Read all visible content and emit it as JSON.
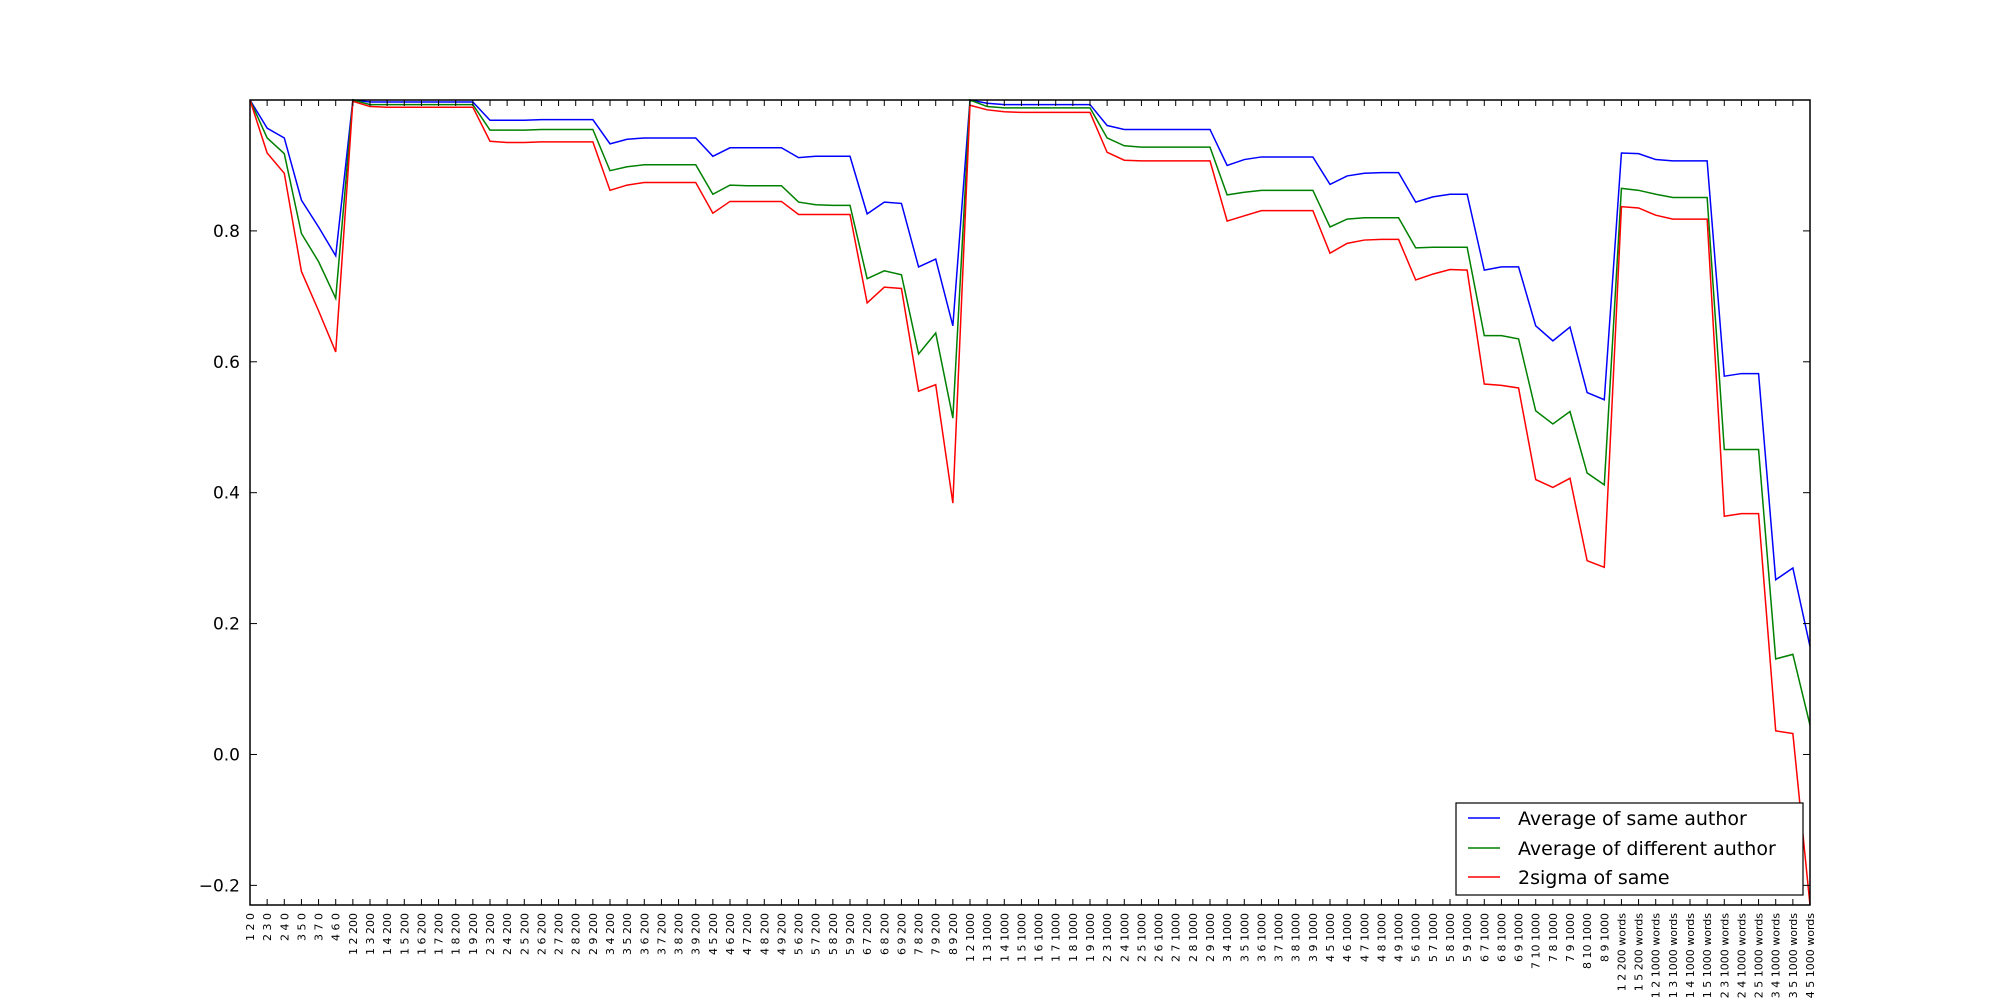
{
  "chart_data": {
    "type": "line",
    "title": "",
    "xlabel": "",
    "ylabel": "",
    "ylim": [
      -0.23,
      1.0
    ],
    "yticks": [
      -0.2,
      0.0,
      0.2,
      0.4,
      0.6,
      0.8
    ],
    "ytick_labels": [
      "−0.2",
      "0.0",
      "0.2",
      "0.4",
      "0.6",
      "0.8"
    ],
    "grid": false,
    "legend_position": "bottom-right",
    "categories": [
      "1 2 0",
      "2 3 0",
      "2 4 0",
      "3 5 0",
      "3 7 0",
      "4 6 0",
      "1 2 200",
      "1 3 200",
      "1 4 200",
      "1 5 200",
      "1 6 200",
      "1 7 200",
      "1 8 200",
      "1 9 200",
      "2 3 200",
      "2 4 200",
      "2 5 200",
      "2 6 200",
      "2 7 200",
      "2 8 200",
      "2 9 200",
      "3 4 200",
      "3 5 200",
      "3 6 200",
      "3 7 200",
      "3 8 200",
      "3 9 200",
      "4 5 200",
      "4 6 200",
      "4 7 200",
      "4 8 200",
      "4 9 200",
      "5 6 200",
      "5 7 200",
      "5 8 200",
      "5 9 200",
      "6 7 200",
      "6 8 200",
      "6 9 200",
      "7 8 200",
      "7 9 200",
      "8 9 200",
      "1 2 1000",
      "1 3 1000",
      "1 4 1000",
      "1 5 1000",
      "1 6 1000",
      "1 7 1000",
      "1 8 1000",
      "1 9 1000",
      "2 3 1000",
      "2 4 1000",
      "2 5 1000",
      "2 6 1000",
      "2 7 1000",
      "2 8 1000",
      "2 9 1000",
      "3 4 1000",
      "3 5 1000",
      "3 6 1000",
      "3 7 1000",
      "3 8 1000",
      "3 9 1000",
      "4 5 1000",
      "4 6 1000",
      "4 7 1000",
      "4 8 1000",
      "4 9 1000",
      "5 6 1000",
      "5 7 1000",
      "5 8 1000",
      "5 9 1000",
      "6 7 1000",
      "6 8 1000",
      "6 9 1000",
      "7 10 1000",
      "7 8 1000",
      "7 9 1000",
      "8 10 1000",
      "8 9 1000",
      "1 2 200 words",
      "1 5 200 words",
      "1 2 1000 words",
      "1 3 1000 words",
      "1 4 1000 words",
      "1 5 1000 words",
      "2 3 1000 words",
      "2 4 1000 words",
      "2 5 1000 words",
      "3 4 1000 words",
      "3 5 1000 words",
      "4 5 1000 words"
    ],
    "series": [
      {
        "name": "Average of same author",
        "color": "#0000ff",
        "values": [
          1.0,
          0.957,
          0.942,
          0.847,
          0.806,
          0.762,
          1.0,
          0.997,
          0.997,
          0.997,
          0.997,
          0.997,
          0.997,
          0.997,
          0.969,
          0.969,
          0.969,
          0.97,
          0.97,
          0.97,
          0.97,
          0.933,
          0.94,
          0.942,
          0.942,
          0.942,
          0.942,
          0.914,
          0.927,
          0.927,
          0.927,
          0.927,
          0.912,
          0.914,
          0.914,
          0.914,
          0.826,
          0.844,
          0.842,
          0.745,
          0.757,
          0.655,
          1.0,
          0.995,
          0.993,
          0.993,
          0.993,
          0.993,
          0.993,
          0.993,
          0.961,
          0.955,
          0.955,
          0.955,
          0.955,
          0.955,
          0.955,
          0.9,
          0.909,
          0.913,
          0.913,
          0.913,
          0.913,
          0.871,
          0.884,
          0.888,
          0.889,
          0.889,
          0.844,
          0.852,
          0.856,
          0.856,
          0.74,
          0.745,
          0.745,
          0.655,
          0.632,
          0.653,
          0.553,
          0.542,
          0.919,
          0.918,
          0.909,
          0.907,
          0.907,
          0.907,
          0.578,
          0.582,
          0.582,
          0.267,
          0.285,
          0.165
        ]
      },
      {
        "name": "Average of different author",
        "color": "#008000",
        "values": [
          1.0,
          0.942,
          0.918,
          0.796,
          0.753,
          0.697,
          1.0,
          0.993,
          0.993,
          0.993,
          0.993,
          0.993,
          0.993,
          0.993,
          0.954,
          0.954,
          0.954,
          0.955,
          0.955,
          0.955,
          0.955,
          0.892,
          0.898,
          0.901,
          0.901,
          0.901,
          0.901,
          0.856,
          0.87,
          0.869,
          0.869,
          0.869,
          0.844,
          0.84,
          0.839,
          0.839,
          0.727,
          0.739,
          0.733,
          0.612,
          0.644,
          0.514,
          1.0,
          0.99,
          0.988,
          0.988,
          0.988,
          0.988,
          0.988,
          0.988,
          0.942,
          0.93,
          0.928,
          0.928,
          0.928,
          0.928,
          0.928,
          0.855,
          0.859,
          0.862,
          0.862,
          0.862,
          0.862,
          0.806,
          0.818,
          0.82,
          0.82,
          0.82,
          0.774,
          0.775,
          0.775,
          0.775,
          0.64,
          0.64,
          0.635,
          0.525,
          0.505,
          0.524,
          0.43,
          0.412,
          0.865,
          0.862,
          0.856,
          0.851,
          0.851,
          0.851,
          0.466,
          0.466,
          0.466,
          0.146,
          0.153,
          0.045
        ]
      },
      {
        "name": "2sigma of same",
        "color": "#ff0000",
        "values": [
          1.0,
          0.919,
          0.888,
          0.738,
          0.678,
          0.615,
          0.998,
          0.99,
          0.989,
          0.989,
          0.989,
          0.989,
          0.989,
          0.989,
          0.937,
          0.935,
          0.935,
          0.936,
          0.936,
          0.936,
          0.936,
          0.862,
          0.87,
          0.874,
          0.874,
          0.874,
          0.874,
          0.827,
          0.845,
          0.845,
          0.845,
          0.845,
          0.825,
          0.825,
          0.825,
          0.825,
          0.69,
          0.714,
          0.712,
          0.555,
          0.565,
          0.384,
          0.992,
          0.985,
          0.982,
          0.981,
          0.981,
          0.981,
          0.981,
          0.981,
          0.92,
          0.908,
          0.907,
          0.907,
          0.907,
          0.907,
          0.907,
          0.815,
          0.823,
          0.831,
          0.831,
          0.831,
          0.831,
          0.766,
          0.781,
          0.786,
          0.787,
          0.787,
          0.725,
          0.734,
          0.741,
          0.74,
          0.566,
          0.564,
          0.56,
          0.42,
          0.408,
          0.422,
          0.296,
          0.286,
          0.837,
          0.835,
          0.824,
          0.818,
          0.818,
          0.818,
          0.364,
          0.368,
          0.368,
          0.036,
          0.032,
          -0.23
        ]
      }
    ]
  }
}
